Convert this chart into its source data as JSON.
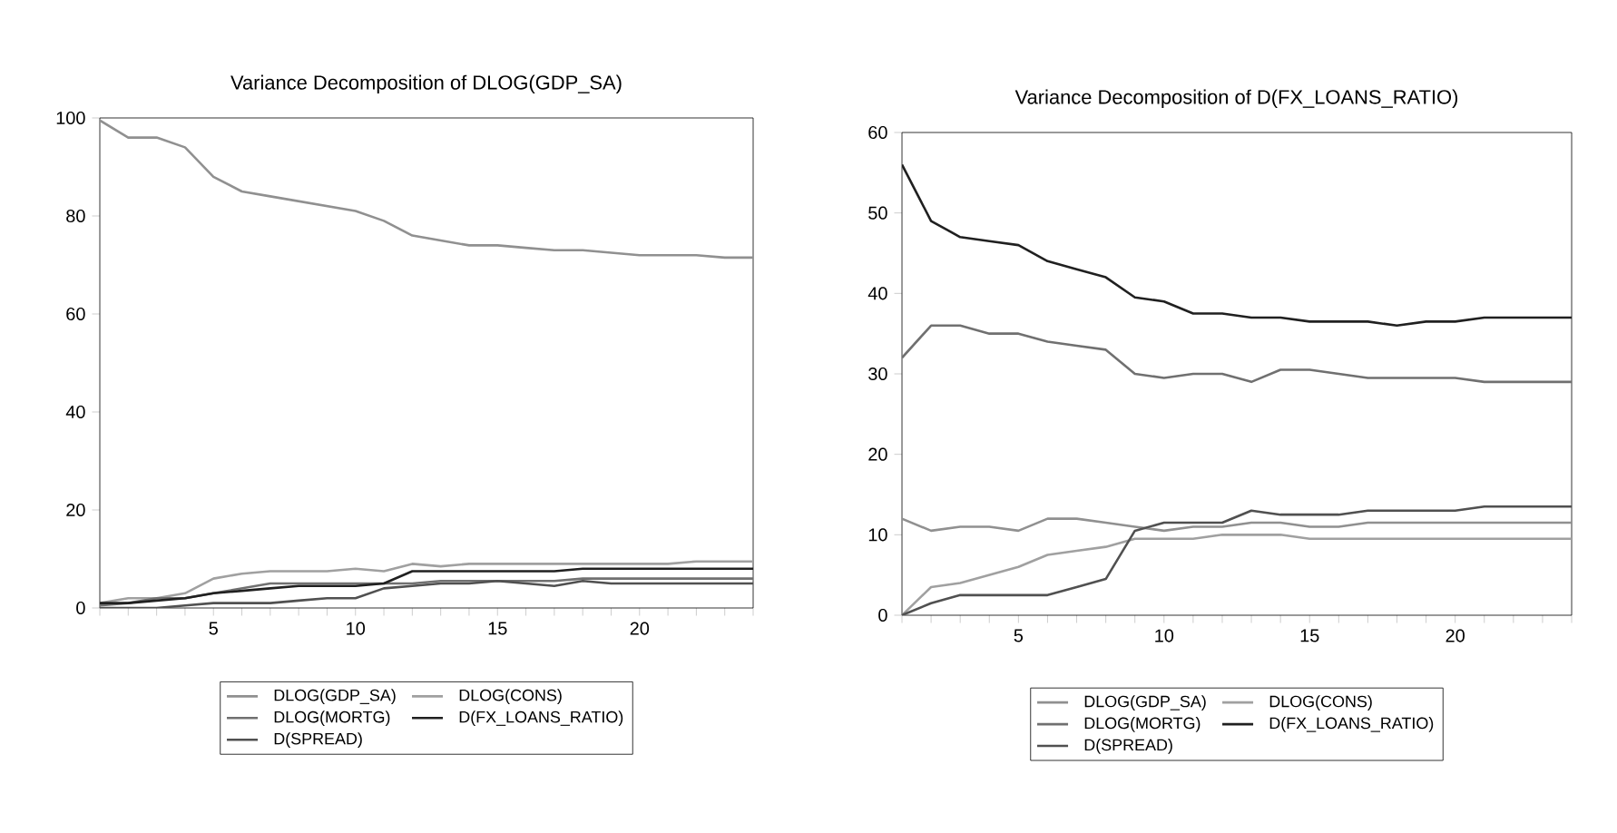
{
  "chart_data": [
    {
      "type": "line",
      "title": "Variance Decomposition of DLOG(GDP_SA)",
      "x": [
        1,
        2,
        3,
        4,
        5,
        6,
        7,
        8,
        9,
        10,
        11,
        12,
        13,
        14,
        15,
        16,
        17,
        18,
        19,
        20,
        21,
        22,
        23,
        24
      ],
      "xlim": [
        1,
        24
      ],
      "ylim": [
        0,
        100
      ],
      "yticks": [
        0,
        20,
        40,
        60,
        80,
        100
      ],
      "xticks": [
        {
          "value": 1,
          "label": null
        },
        {
          "value": 2,
          "label": null
        },
        {
          "value": 3,
          "label": null
        },
        {
          "value": 4,
          "label": null
        },
        5,
        {
          "value": 6,
          "label": null
        },
        {
          "value": 7,
          "label": null
        },
        {
          "value": 8,
          "label": null
        },
        {
          "value": 9,
          "label": null
        },
        10,
        {
          "value": 11,
          "label": null
        },
        {
          "value": 12,
          "label": null
        },
        {
          "value": 13,
          "label": null
        },
        {
          "value": 14,
          "label": null
        },
        15,
        {
          "value": 16,
          "label": null
        },
        {
          "value": 17,
          "label": null
        },
        {
          "value": 18,
          "label": null
        },
        {
          "value": 19,
          "label": null
        },
        20,
        {
          "value": 21,
          "label": null
        },
        {
          "value": 22,
          "label": null
        },
        {
          "value": 23,
          "label": null
        },
        {
          "value": 24,
          "label": null
        }
      ],
      "legend": "bottom",
      "series": [
        {
          "name": "DLOG(GDP_SA)",
          "color": "#909090",
          "values": [
            99.5,
            96,
            96,
            94,
            88,
            85,
            84,
            83,
            82,
            81,
            79,
            76,
            75,
            74,
            74,
            73.5,
            73,
            73,
            72.5,
            72,
            72,
            72,
            71.5,
            71.5
          ]
        },
        {
          "name": "DLOG(CONS)",
          "color": "#a0a0a0",
          "values": [
            1,
            2,
            2,
            3,
            6,
            7,
            7.5,
            7.5,
            7.5,
            8,
            7.5,
            9,
            8.5,
            9,
            9,
            9,
            9,
            9,
            9,
            9,
            9,
            9.5,
            9.5,
            9.5
          ]
        },
        {
          "name": "DLOG(MORTG)",
          "color": "#707070",
          "values": [
            0.5,
            1,
            2,
            2,
            3,
            4,
            5,
            5,
            5,
            5,
            5,
            5,
            5.5,
            5.5,
            5.5,
            5.5,
            5.5,
            6,
            6,
            6,
            6,
            6,
            6,
            6
          ]
        },
        {
          "name": "D(FX_LOANS_RATIO)",
          "color": "#202020",
          "values": [
            1,
            1,
            1.5,
            2,
            3,
            3.5,
            4,
            4.5,
            4.5,
            4.5,
            5,
            7.5,
            7.5,
            7.5,
            7.5,
            7.5,
            7.5,
            8,
            8,
            8,
            8,
            8,
            8,
            8
          ]
        },
        {
          "name": "D(SPREAD)",
          "color": "#505050",
          "values": [
            0,
            0,
            0,
            0.5,
            1,
            1,
            1,
            1.5,
            2,
            2,
            4,
            4.5,
            5,
            5,
            5.5,
            5,
            4.5,
            5.5,
            5,
            5,
            5,
            5,
            5,
            5
          ]
        }
      ]
    },
    {
      "type": "line",
      "title": "Variance Decomposition of D(FX_LOANS_RATIO)",
      "x": [
        1,
        2,
        3,
        4,
        5,
        6,
        7,
        8,
        9,
        10,
        11,
        12,
        13,
        14,
        15,
        16,
        17,
        18,
        19,
        20,
        21,
        22,
        23,
        24
      ],
      "xlim": [
        1,
        24
      ],
      "ylim": [
        0,
        60
      ],
      "yticks": [
        0,
        10,
        20,
        30,
        40,
        50,
        60
      ],
      "xticks": [
        {
          "value": 1,
          "label": null
        },
        {
          "value": 2,
          "label": null
        },
        {
          "value": 3,
          "label": null
        },
        {
          "value": 4,
          "label": null
        },
        5,
        {
          "value": 6,
          "label": null
        },
        {
          "value": 7,
          "label": null
        },
        {
          "value": 8,
          "label": null
        },
        {
          "value": 9,
          "label": null
        },
        10,
        {
          "value": 11,
          "label": null
        },
        {
          "value": 12,
          "label": null
        },
        {
          "value": 13,
          "label": null
        },
        {
          "value": 14,
          "label": null
        },
        15,
        {
          "value": 16,
          "label": null
        },
        {
          "value": 17,
          "label": null
        },
        {
          "value": 18,
          "label": null
        },
        {
          "value": 19,
          "label": null
        },
        20,
        {
          "value": 21,
          "label": null
        },
        {
          "value": 22,
          "label": null
        },
        {
          "value": 23,
          "label": null
        },
        {
          "value": 24,
          "label": null
        }
      ],
      "legend": "bottom",
      "series": [
        {
          "name": "DLOG(GDP_SA)",
          "color": "#909090",
          "values": [
            12,
            10.5,
            11,
            11,
            10.5,
            12,
            12,
            11.5,
            11,
            10.5,
            11,
            11,
            11.5,
            11.5,
            11,
            11,
            11.5,
            11.5,
            11.5,
            11.5,
            11.5,
            11.5,
            11.5,
            11.5
          ]
        },
        {
          "name": "DLOG(CONS)",
          "color": "#a0a0a0",
          "values": [
            0,
            3.5,
            4,
            5,
            6,
            7.5,
            8,
            8.5,
            9.5,
            9.5,
            9.5,
            10,
            10,
            10,
            9.5,
            9.5,
            9.5,
            9.5,
            9.5,
            9.5,
            9.5,
            9.5,
            9.5,
            9.5
          ]
        },
        {
          "name": "DLOG(MORTG)",
          "color": "#707070",
          "values": [
            32,
            36,
            36,
            35,
            35,
            34,
            33.5,
            33,
            30,
            29.5,
            30,
            30,
            29,
            30.5,
            30.5,
            30,
            29.5,
            29.5,
            29.5,
            29.5,
            29,
            29,
            29,
            29
          ]
        },
        {
          "name": "D(FX_LOANS_RATIO)",
          "color": "#202020",
          "values": [
            56,
            49,
            47,
            46.5,
            46,
            44,
            43,
            42,
            39.5,
            39,
            37.5,
            37.5,
            37,
            37,
            36.5,
            36.5,
            36.5,
            36,
            36.5,
            36.5,
            37,
            37,
            37,
            37
          ]
        },
        {
          "name": "D(SPREAD)",
          "color": "#505050",
          "values": [
            0,
            1.5,
            2.5,
            2.5,
            2.5,
            2.5,
            3.5,
            4.5,
            10.5,
            11.5,
            11.5,
            11.5,
            13,
            12.5,
            12.5,
            12.5,
            13,
            13,
            13,
            13,
            13.5,
            13.5,
            13.5,
            13.5
          ]
        }
      ]
    }
  ]
}
